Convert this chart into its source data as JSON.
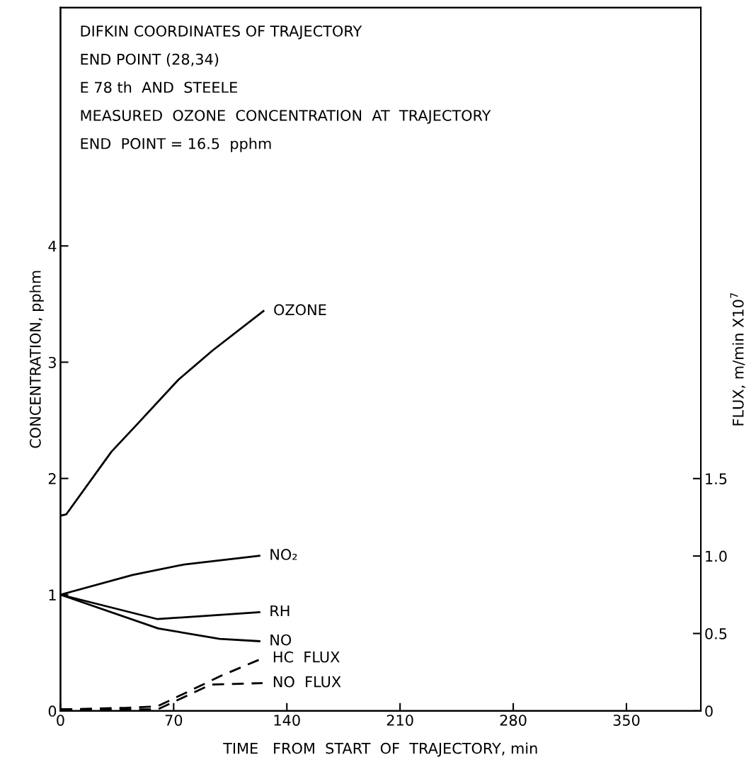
{
  "chart_data": {
    "type": "line",
    "annotations": [
      "DIFKIN COORDINATES OF TRAJECTORY",
      "END POINT (28,34)",
      "E 78 th  AND  STEELE",
      "MEASURED  OZONE  CONCENTRATION  AT  TRAJECTORY",
      "END  POINT = 16.5  pphm"
    ],
    "xlabel": "TIME   FROM  START  OF  TRAJECTORY, min",
    "ylabel": "CONCENTRATION, pphm",
    "y2label": "FLUX, m/min X10$^{7}$",
    "xlim": [
      0,
      396
    ],
    "xticks": [
      0,
      70,
      140,
      210,
      280,
      350
    ],
    "ylim": [
      0,
      6.05
    ],
    "yticks": [
      0,
      1,
      2,
      3,
      4
    ],
    "y2lim": [
      0,
      4.54
    ],
    "y2ticks": [
      0,
      0.5,
      {
        "value": 1.0,
        "label": "1.0"
      },
      1.5
    ],
    "grid": false,
    "legend": false,
    "series": [
      {
        "name": "OZONE",
        "color": "#000000",
        "line_style": "solid",
        "x": [
          0,
          3.5,
          31.5,
          47,
          73,
          94,
          125.5
        ],
        "values": [
          1.68,
          1.69,
          2.23,
          2.46,
          2.85,
          3.1,
          3.44
        ]
      },
      {
        "name": "NO₂",
        "color": "#000000",
        "line_style": "solid",
        "x": [
          0,
          44.6,
          76.5,
          123
        ],
        "values": [
          1.0,
          1.17,
          1.26,
          1.335
        ]
      },
      {
        "name": "RH",
        "color": "#000000",
        "line_style": "solid",
        "x": [
          0,
          60,
          123
        ],
        "values": [
          1.0,
          0.79,
          0.85
        ]
      },
      {
        "name": "NO",
        "color": "#000000",
        "line_style": "solid",
        "x": [
          0,
          60.4,
          98.4,
          123
        ],
        "values": [
          1.0,
          0.71,
          0.62,
          0.6
        ]
      },
      {
        "name": "HC  FLUX",
        "color": "#000000",
        "line_style": "dashed",
        "axis": "y2",
        "x": [
          0,
          40,
          60,
          100,
          125
        ],
        "values": [
          0.01,
          0.02,
          0.03,
          0.23,
          0.34
        ]
      },
      {
        "name": "NO  FLUX",
        "color": "#000000",
        "line_style": "dashed",
        "axis": "y2",
        "x": [
          0,
          60,
          93,
          125
        ],
        "values": [
          0.01,
          0.01,
          0.17,
          0.18
        ]
      }
    ]
  }
}
